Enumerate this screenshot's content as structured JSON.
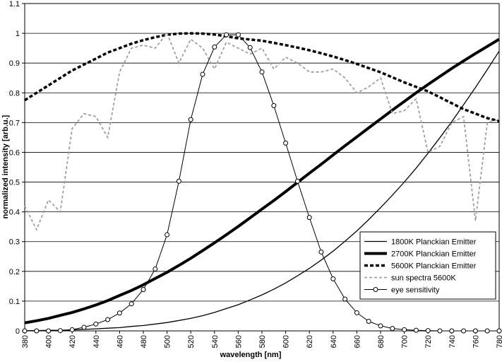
{
  "chart_data": {
    "type": "line",
    "x_label": "wavelength [nm]",
    "y_label": "normalized intensity [arb.u.]",
    "x": [
      380,
      390,
      400,
      410,
      420,
      430,
      440,
      450,
      460,
      470,
      480,
      490,
      500,
      510,
      520,
      530,
      540,
      550,
      560,
      570,
      580,
      590,
      600,
      610,
      620,
      630,
      640,
      650,
      660,
      670,
      680,
      690,
      700,
      710,
      720,
      730,
      740,
      750,
      760,
      770,
      780
    ],
    "xlim": [
      380,
      780
    ],
    "xticks": [
      380,
      400,
      420,
      440,
      460,
      480,
      500,
      520,
      540,
      560,
      580,
      600,
      620,
      640,
      660,
      680,
      700,
      720,
      740,
      760,
      780
    ],
    "ylim": [
      0,
      1.1
    ],
    "yticks": [
      0,
      0.1,
      0.2,
      0.3,
      0.4,
      0.5,
      0.6,
      0.7,
      0.8,
      0.9,
      1,
      1.1
    ],
    "grid": true,
    "legend": "lower right",
    "series": [
      {
        "name": "1800K Planckian Emitter",
        "color": "#000000",
        "style": "solid",
        "width": 1.3,
        "values": [
          0.001,
          0.001,
          0.002,
          0.002,
          0.003,
          0.005,
          0.007,
          0.009,
          0.011,
          0.015,
          0.018,
          0.023,
          0.028,
          0.035,
          0.042,
          0.051,
          0.062,
          0.075,
          0.088,
          0.104,
          0.121,
          0.14,
          0.161,
          0.185,
          0.21,
          0.238,
          0.268,
          0.301,
          0.336,
          0.374,
          0.414,
          0.456,
          0.5,
          0.547,
          0.597,
          0.649,
          0.703,
          0.76,
          0.818,
          0.878,
          0.94
        ]
      },
      {
        "name": "2700K Planckian Emitter",
        "color": "#000000",
        "style": "solid",
        "width": 4,
        "values": [
          0.027,
          0.034,
          0.042,
          0.052,
          0.062,
          0.074,
          0.087,
          0.102,
          0.119,
          0.136,
          0.155,
          0.176,
          0.197,
          0.22,
          0.244,
          0.27,
          0.296,
          0.323,
          0.351,
          0.38,
          0.409,
          0.438,
          0.468,
          0.499,
          0.53,
          0.56,
          0.591,
          0.622,
          0.652,
          0.682,
          0.712,
          0.742,
          0.771,
          0.8,
          0.828,
          0.855,
          0.882,
          0.907,
          0.932,
          0.956,
          0.98
        ]
      },
      {
        "name": "5600K Planckian Emitter",
        "color": "#000000",
        "style": "dashed",
        "width": 3.5,
        "values": [
          0.775,
          0.8,
          0.825,
          0.85,
          0.875,
          0.895,
          0.915,
          0.935,
          0.95,
          0.965,
          0.977,
          0.987,
          0.995,
          0.999,
          1,
          0.999,
          0.996,
          0.99,
          0.983,
          0.979,
          0.975,
          0.968,
          0.96,
          0.952,
          0.943,
          0.933,
          0.922,
          0.91,
          0.897,
          0.883,
          0.869,
          0.852,
          0.835,
          0.82,
          0.805,
          0.785,
          0.765,
          0.745,
          0.73,
          0.715,
          0.705
        ]
      },
      {
        "name": "sun spectra 5600K",
        "color": "#a0a0a0",
        "style": "dashed",
        "width": 1.8,
        "values": [
          0.42,
          0.34,
          0.44,
          0.4,
          0.68,
          0.73,
          0.72,
          0.65,
          0.87,
          0.95,
          0.96,
          0.95,
          1,
          0.9,
          0.98,
          0.95,
          0.88,
          0.97,
          0.95,
          0.93,
          0.95,
          0.88,
          0.92,
          0.9,
          0.87,
          0.87,
          0.88,
          0.85,
          0.8,
          0.82,
          0.85,
          0.73,
          0.74,
          0.78,
          0.6,
          0.62,
          0.7,
          0.72,
          0.37,
          0.7,
          0.71
        ]
      },
      {
        "name": "eye sensitivity",
        "color": "#000000",
        "style": "solid",
        "width": 1,
        "marker": "circle",
        "values": [
          0,
          0,
          0,
          0.001,
          0.004,
          0.012,
          0.023,
          0.038,
          0.06,
          0.091,
          0.139,
          0.208,
          0.323,
          0.503,
          0.71,
          0.862,
          0.954,
          0.995,
          0.995,
          0.952,
          0.87,
          0.757,
          0.631,
          0.503,
          0.381,
          0.265,
          0.175,
          0.107,
          0.061,
          0.032,
          0.017,
          0.008,
          0.004,
          0.002,
          0.001,
          0,
          0,
          0,
          0,
          0,
          0
        ]
      }
    ]
  }
}
